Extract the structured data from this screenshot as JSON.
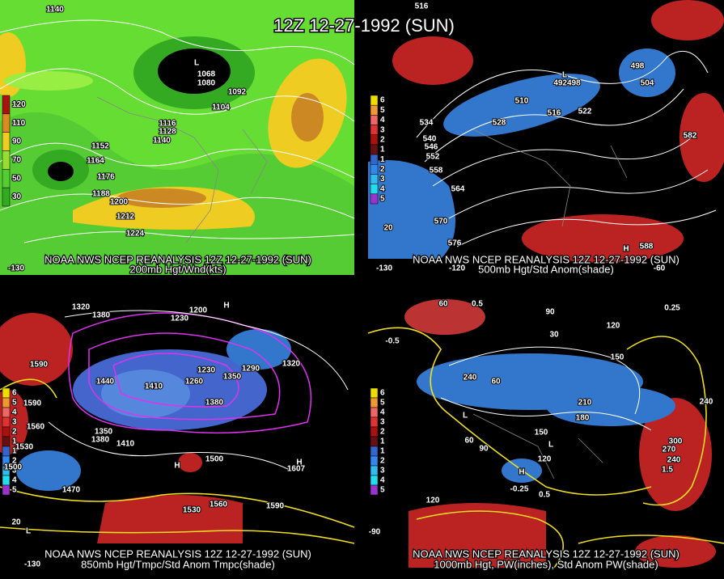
{
  "title": "12Z 12-27-1992 (SUN)",
  "panels": [
    {
      "caption": "NOAA NWS NCEP REANALYSIS 12Z 12-27-1992 (SUN)",
      "subcaption": "200mb Hgt/Wnd(kts)",
      "legend": [
        "120",
        "110",
        "90",
        "70",
        "50",
        "30"
      ],
      "labels": [
        "1140",
        "1068",
        "1080",
        "1092",
        "1104",
        "1116",
        "1128",
        "1140",
        "1152",
        "1164",
        "1176",
        "1188",
        "1200",
        "1212",
        "1224",
        "L",
        "-130"
      ]
    },
    {
      "caption": "NOAA NWS NCEP REANALYSIS 12Z 12-27-1992 (SUN)",
      "subcaption": "500mb Hgt/Std Anom(shade)",
      "legend": [
        "6",
        "5",
        "4",
        "3",
        "2",
        "1",
        "1",
        "2",
        "3",
        "4",
        "5"
      ],
      "labels": [
        "516",
        "498",
        "504",
        "492498",
        "510",
        "516",
        "522",
        "528",
        "534",
        "540",
        "546",
        "552",
        "558",
        "564",
        "570",
        "576",
        "582",
        "588",
        "L",
        "H",
        "20",
        "-130",
        "-120",
        "-60"
      ]
    },
    {
      "caption": "NOAA NWS NCEP REANALYSIS 12Z 12-27-1992 (SUN)",
      "subcaption": "850mb Hgt/Tmpc/Std Anom Tmpc(shade)",
      "legend": [
        "6",
        "5",
        "4",
        "3",
        "2",
        "1",
        "1",
        "2",
        "3",
        "4",
        "5"
      ],
      "labels": [
        "1320",
        "1380",
        "1200",
        "1230",
        "H",
        "1590",
        "1440",
        "1410",
        "1260",
        "1230",
        "1350",
        "1290",
        "1320",
        "1380",
        "1590",
        "1560",
        "1530",
        "1500",
        "1350",
        "1380",
        "1410",
        "1500",
        "H",
        "1470",
        "1530",
        "1560",
        "1590",
        "20",
        "L",
        "-130",
        "H",
        "1607"
      ]
    },
    {
      "caption": "NOAA NWS NCEP REANALYSIS 12Z 12-27-1992 (SUN)",
      "subcaption": "1000mb Hgt, PW(inches), Std Anom PW(shade)",
      "legend": [
        "6",
        "5",
        "4",
        "3",
        "2",
        "1",
        "1",
        "2",
        "3",
        "4",
        "5"
      ],
      "labels": [
        "0.5",
        "-0.5",
        "60",
        "30",
        "90",
        "120",
        "150",
        "240",
        "60",
        "210",
        "180",
        "150",
        "L",
        "60",
        "90",
        "120",
        "L",
        "H",
        "0.25",
        "0.5",
        "240",
        "300",
        "270",
        "240",
        "1.5",
        "120",
        "-90",
        "-0.25"
      ]
    }
  ]
}
